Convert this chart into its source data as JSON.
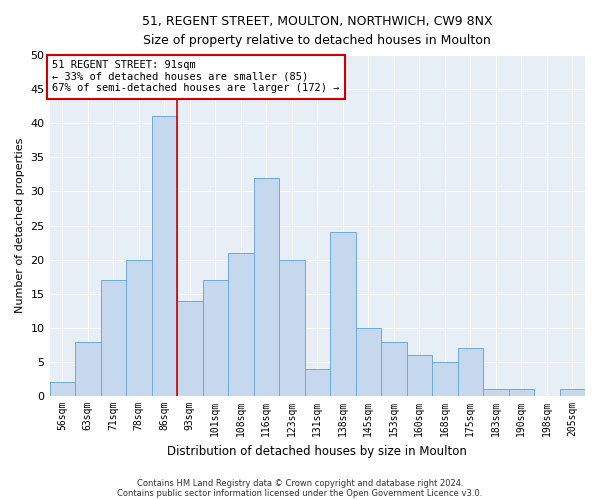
{
  "title1": "51, REGENT STREET, MOULTON, NORTHWICH, CW9 8NX",
  "title2": "Size of property relative to detached houses in Moulton",
  "xlabel": "Distribution of detached houses by size in Moulton",
  "ylabel": "Number of detached properties",
  "categories": [
    "56sqm",
    "63sqm",
    "71sqm",
    "78sqm",
    "86sqm",
    "93sqm",
    "101sqm",
    "108sqm",
    "116sqm",
    "123sqm",
    "131sqm",
    "138sqm",
    "145sqm",
    "153sqm",
    "160sqm",
    "168sqm",
    "175sqm",
    "183sqm",
    "190sqm",
    "198sqm",
    "205sqm"
  ],
  "values": [
    2,
    8,
    17,
    20,
    41,
    14,
    17,
    21,
    32,
    20,
    4,
    24,
    10,
    8,
    6,
    5,
    7,
    1,
    1,
    0,
    1
  ],
  "bar_color": "#c5d8ee",
  "bar_edge_color": "#6aaad4",
  "background_color": "#e8eef6",
  "property_line_x": 4.5,
  "annotation_text": "51 REGENT STREET: 91sqm\n← 33% of detached houses are smaller (85)\n67% of semi-detached houses are larger (172) →",
  "annotation_box_color": "#ffffff",
  "annotation_box_edge": "#cc0000",
  "vline_color": "#cc0000",
  "ylim": [
    0,
    50
  ],
  "yticks": [
    0,
    5,
    10,
    15,
    20,
    25,
    30,
    35,
    40,
    45,
    50
  ],
  "footer1": "Contains HM Land Registry data © Crown copyright and database right 2024.",
  "footer2": "Contains public sector information licensed under the Open Government Licence v3.0."
}
